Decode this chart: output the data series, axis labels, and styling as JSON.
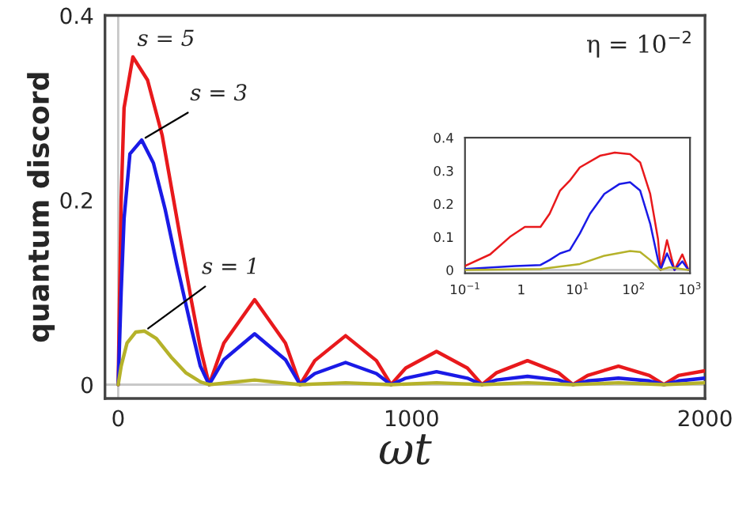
{
  "chart_data": [
    {
      "type": "line",
      "xlabel": "ωt",
      "ylabel": "quantum discord",
      "xlim": [
        -45,
        2000
      ],
      "ylim": [
        -0.015,
        0.4
      ],
      "xticks": [
        0,
        1000,
        2000
      ],
      "yticks": [
        0,
        0.2,
        0.4
      ],
      "grid": false,
      "legend": false,
      "ref_lines": [
        {
          "axis": "y",
          "value": 0,
          "color": "#c8c8c8"
        },
        {
          "axis": "x",
          "value": 0,
          "color": "#c8c8c8"
        }
      ],
      "annotations": [
        {
          "text": "s = 5",
          "x": 50,
          "y": 0.355
        },
        {
          "text": "s = 3",
          "x": 80,
          "y": 0.265
        },
        {
          "text": "s = 1",
          "x": 90,
          "y": 0.058
        },
        "η = 10$^{−2}$"
      ],
      "series": [
        {
          "color": "#e8191c",
          "x": [
            0,
            10,
            20,
            50,
            100,
            150,
            200,
            250,
            280,
            310,
            360,
            465,
            570,
            620,
            670,
            775,
            880,
            930,
            980,
            1085,
            1190,
            1240,
            1290,
            1395,
            1500,
            1550,
            1600,
            1705,
            1810,
            1860,
            1910,
            2000
          ],
          "values": [
            0,
            0.2,
            0.3,
            0.355,
            0.33,
            0.27,
            0.18,
            0.09,
            0.04,
            0,
            0.045,
            0.092,
            0.045,
            0,
            0.026,
            0.053,
            0.026,
            0,
            0.018,
            0.036,
            0.018,
            0,
            0.013,
            0.026,
            0.013,
            0,
            0.01,
            0.02,
            0.01,
            0,
            0.01,
            0.015
          ]
        },
        {
          "color": "#1a1ae6",
          "x": [
            0,
            10,
            20,
            40,
            80,
            120,
            160,
            200,
            250,
            280,
            310,
            360,
            465,
            570,
            620,
            670,
            775,
            880,
            930,
            980,
            1085,
            1190,
            1240,
            1290,
            1395,
            1500,
            1550,
            1600,
            1705,
            1810,
            1860,
            1910,
            2000
          ],
          "values": [
            0,
            0.1,
            0.18,
            0.25,
            0.265,
            0.24,
            0.19,
            0.13,
            0.06,
            0.02,
            0,
            0.027,
            0.055,
            0.027,
            0,
            0.012,
            0.024,
            0.012,
            0,
            0.007,
            0.014,
            0.007,
            0,
            0.005,
            0.009,
            0.005,
            0,
            0.004,
            0.007,
            0.004,
            0,
            0.004,
            0.007
          ]
        },
        {
          "color": "#b5b22a",
          "x": [
            0,
            10,
            30,
            60,
            90,
            130,
            180,
            230,
            280,
            310,
            465,
            620,
            775,
            930,
            1085,
            1240,
            1395,
            1550,
            1705,
            1860,
            2000
          ],
          "values": [
            0,
            0.02,
            0.045,
            0.057,
            0.058,
            0.05,
            0.03,
            0.013,
            0.003,
            0,
            0.005,
            0,
            0.002,
            0,
            0.002,
            0,
            0.002,
            0,
            0.002,
            0,
            0.002
          ]
        }
      ]
    },
    {
      "type": "line",
      "log": "x",
      "xlim": [
        0.1,
        1000
      ],
      "ylim": [
        -0.01,
        0.4
      ],
      "xticks": [
        {
          "value": 0.1,
          "label": "10$^{−1}$"
        },
        1,
        {
          "value": 10,
          "label": "10$^{1}$"
        },
        {
          "value": 100,
          "label": "10$^{2}$"
        },
        {
          "value": 1000,
          "label": "10$^{3}$"
        }
      ],
      "yticks": [
        0,
        0.1,
        0.2,
        0.3,
        0.4
      ],
      "grid": false,
      "legend": false,
      "ref_lines": [
        {
          "axis": "y",
          "value": 0,
          "color": "#c8c8c8"
        }
      ],
      "series": [
        {
          "color": "#e8191c",
          "x": [
            0.1,
            0.28,
            0.63,
            1.16,
            2.2,
            3.2,
            4.9,
            7.3,
            11,
            25,
            46,
            86,
            130,
            196,
            270,
            300,
            390,
            530,
            730,
            940
          ],
          "values": [
            0.012,
            0.047,
            0.1,
            0.13,
            0.13,
            0.17,
            0.24,
            0.27,
            0.31,
            0.345,
            0.355,
            0.35,
            0.325,
            0.23,
            0.093,
            0,
            0.09,
            0,
            0.047,
            0
          ]
        },
        {
          "color": "#1a1ae6",
          "x": [
            0.1,
            0.78,
            2.2,
            3.2,
            4.9,
            7.3,
            11,
            16.7,
            30,
            56,
            86,
            130,
            196,
            270,
            300,
            390,
            530,
            730,
            940
          ],
          "values": [
            0.003,
            0.012,
            0.015,
            0.03,
            0.05,
            0.06,
            0.11,
            0.17,
            0.23,
            0.26,
            0.265,
            0.24,
            0.14,
            0.03,
            0,
            0.05,
            0,
            0.026,
            0
          ]
        },
        {
          "color": "#b5b22a",
          "x": [
            0.1,
            2.2,
            11,
            30,
            86,
            130,
            196,
            300,
            430,
            940
          ],
          "values": [
            0,
            0.003,
            0.018,
            0.043,
            0.057,
            0.054,
            0.03,
            0,
            0.008,
            0
          ]
        }
      ]
    }
  ]
}
